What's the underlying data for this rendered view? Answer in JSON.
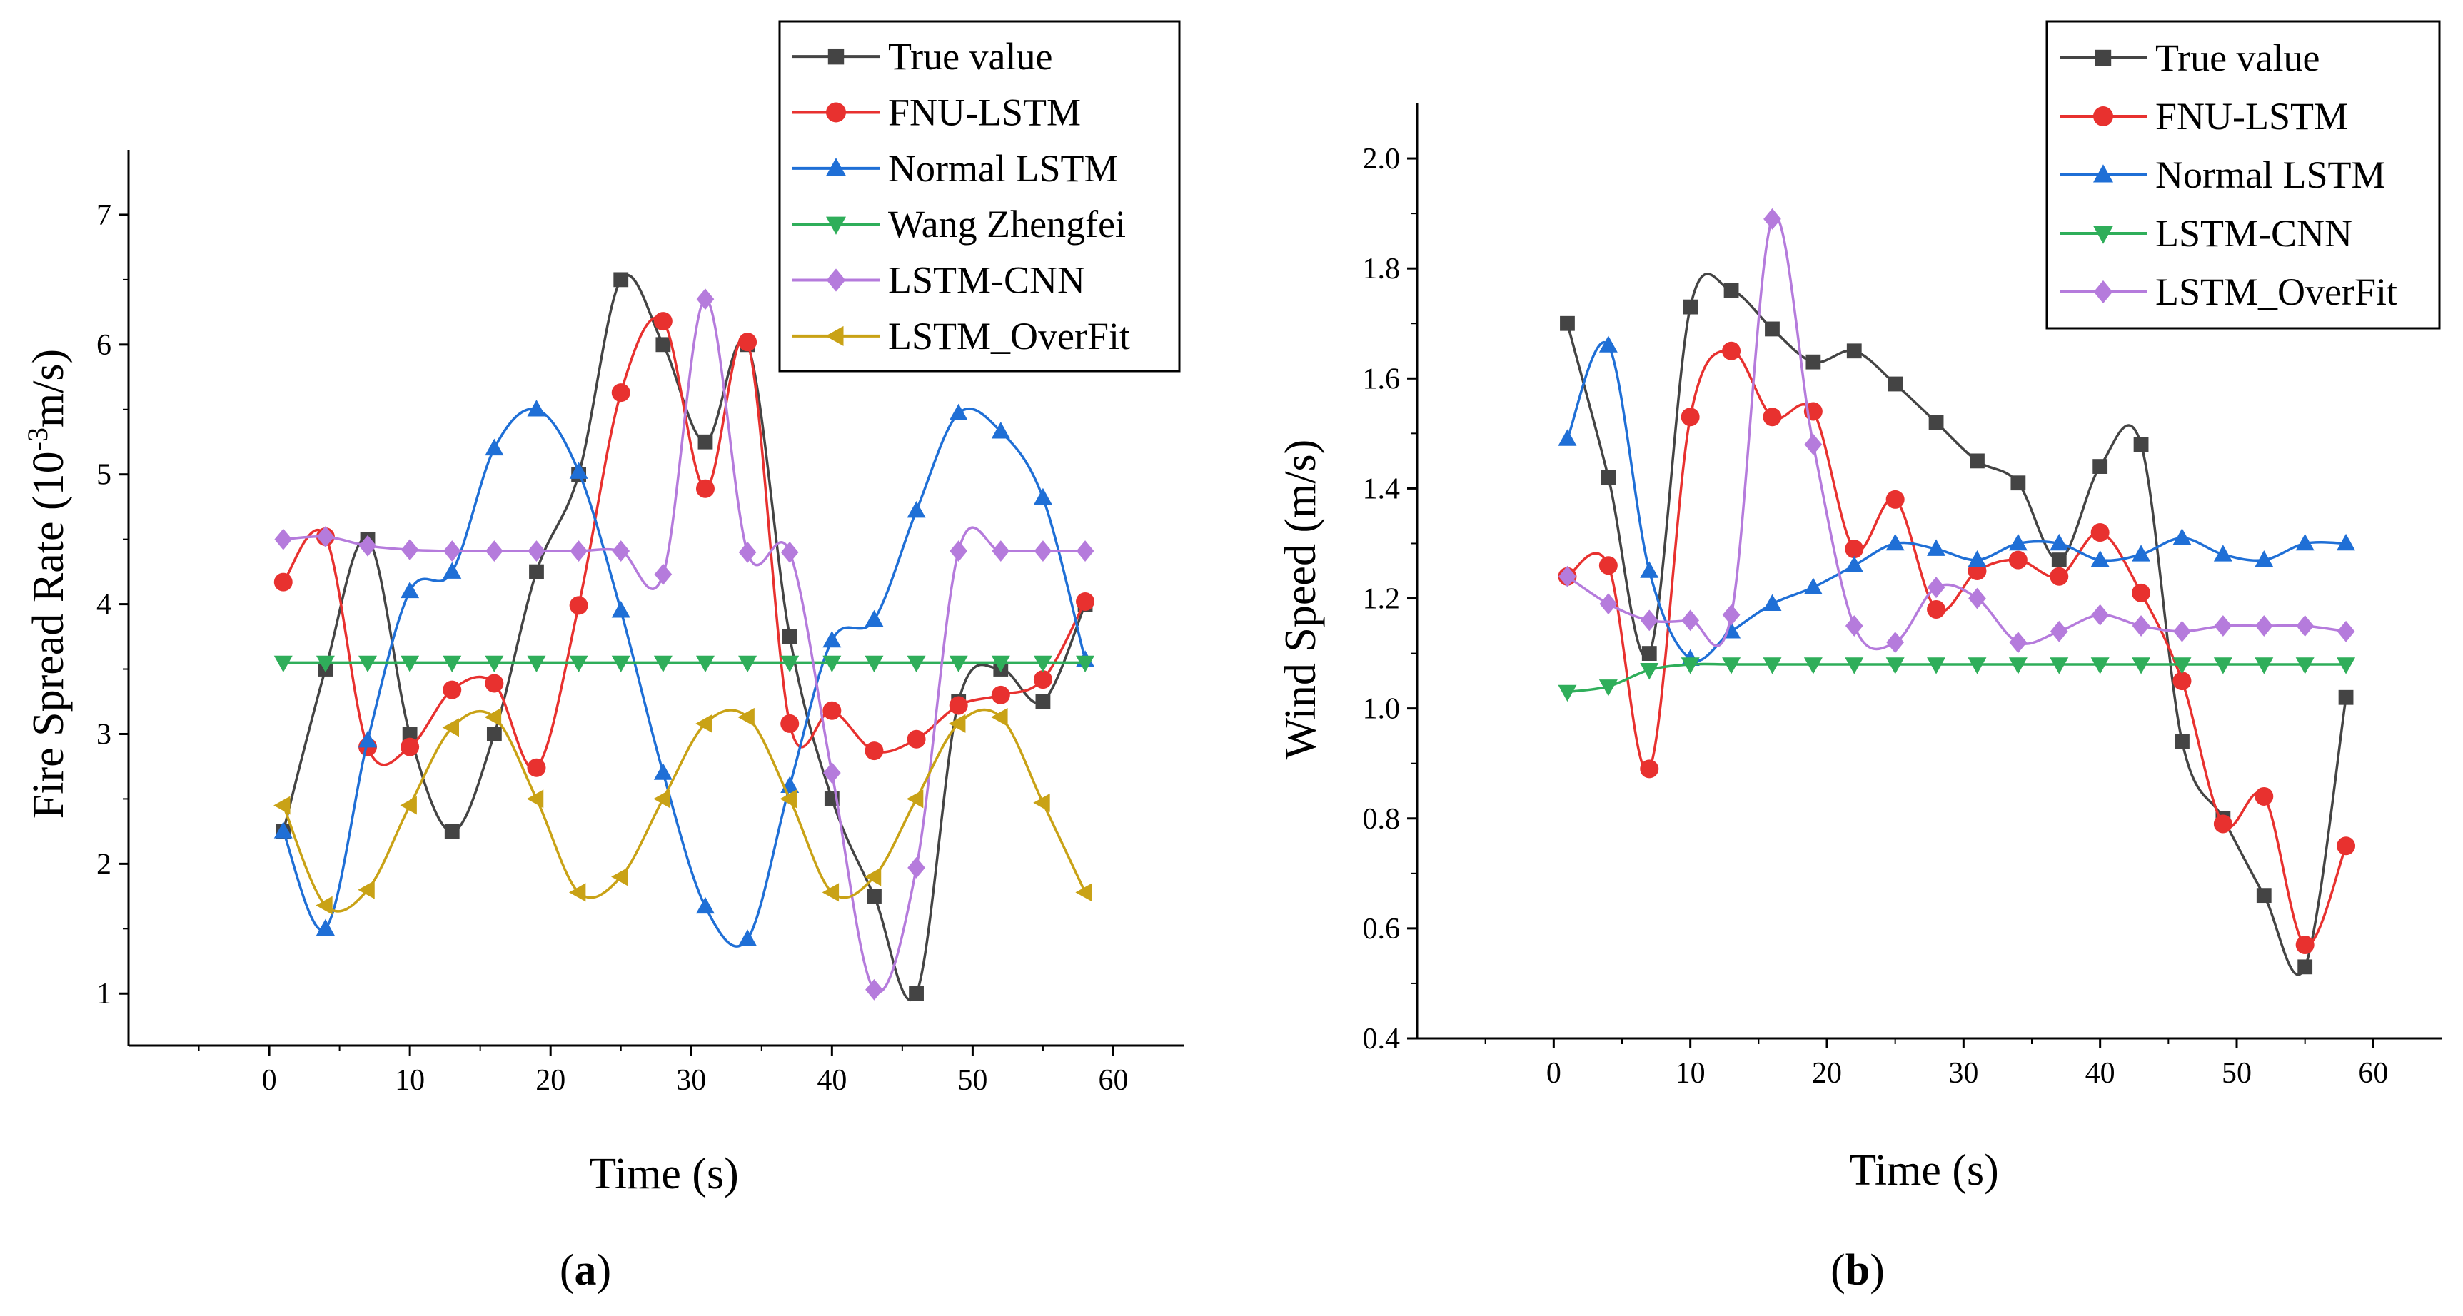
{
  "chart_data": [
    {
      "type": "line",
      "panel_label": "a",
      "title": "",
      "xlabel": "Time (s)",
      "ylabel": "Fire Spread Rate (10⁻³m/s)",
      "xlim": [
        -10,
        65
      ],
      "ylim": [
        0.6,
        7.5
      ],
      "xticks": [
        0,
        10,
        20,
        30,
        40,
        50,
        60
      ],
      "yticks": [
        1,
        2,
        3,
        4,
        5,
        6,
        7
      ],
      "legend_position": "top-right",
      "series": [
        {
          "name": "True value",
          "color": "#444444",
          "marker": "square",
          "x": [
            1,
            4,
            7,
            10,
            13,
            16,
            19,
            22,
            25,
            28,
            31,
            34,
            37,
            40,
            43,
            46,
            49,
            52,
            55,
            58
          ],
          "values": [
            2.25,
            3.5,
            4.5,
            3.0,
            2.25,
            3.0,
            4.25,
            5.0,
            6.5,
            6.0,
            5.25,
            6.0,
            3.75,
            2.5,
            1.75,
            1.0,
            3.25,
            3.5,
            3.25,
            4.0
          ]
        },
        {
          "name": "FNU-LSTM",
          "color": "#e8312f",
          "marker": "circle",
          "x": [
            1,
            4,
            7,
            10,
            13,
            16,
            19,
            22,
            25,
            28,
            31,
            34,
            37,
            40,
            43,
            46,
            49,
            52,
            55,
            58
          ],
          "values": [
            4.17,
            4.52,
            2.9,
            2.9,
            3.34,
            3.39,
            2.74,
            3.99,
            5.63,
            6.18,
            4.89,
            6.02,
            3.08,
            3.18,
            2.87,
            2.96,
            3.22,
            3.3,
            3.42,
            4.02
          ]
        },
        {
          "name": "Normal LSTM",
          "color": "#1f6fd6",
          "marker": "triangle-up",
          "x": [
            1,
            4,
            7,
            10,
            13,
            16,
            19,
            22,
            25,
            28,
            31,
            34,
            37,
            40,
            43,
            46,
            49,
            52,
            55,
            58
          ],
          "values": [
            2.25,
            1.5,
            2.95,
            4.1,
            4.25,
            5.2,
            5.5,
            5.02,
            3.95,
            2.7,
            1.67,
            1.42,
            2.6,
            3.72,
            3.88,
            4.72,
            5.47,
            5.33,
            4.82,
            3.57
          ]
        },
        {
          "name": "Wang Zhengfei",
          "color": "#2fae5a",
          "marker": "triangle-down",
          "x": [
            1,
            4,
            7,
            10,
            13,
            16,
            19,
            22,
            25,
            28,
            31,
            34,
            37,
            40,
            43,
            46,
            49,
            52,
            55,
            58
          ],
          "values": [
            3.55,
            3.55,
            3.55,
            3.55,
            3.55,
            3.55,
            3.55,
            3.55,
            3.55,
            3.55,
            3.55,
            3.55,
            3.55,
            3.55,
            3.55,
            3.55,
            3.55,
            3.55,
            3.55,
            3.55
          ]
        },
        {
          "name": "LSTM-CNN",
          "color": "#b57bdc",
          "marker": "diamond",
          "x": [
            1,
            4,
            7,
            10,
            13,
            16,
            19,
            22,
            25,
            28,
            31,
            34,
            37,
            40,
            43,
            46,
            49,
            52,
            55,
            58
          ],
          "values": [
            4.5,
            4.52,
            4.45,
            4.42,
            4.41,
            4.41,
            4.41,
            4.41,
            4.41,
            4.23,
            6.35,
            4.4,
            4.4,
            2.7,
            1.03,
            1.97,
            4.41,
            4.41,
            4.41,
            4.41
          ]
        },
        {
          "name": "LSTM_OverFit",
          "color": "#c9a216",
          "marker": "triangle-left",
          "x": [
            1,
            4,
            7,
            10,
            13,
            16,
            19,
            22,
            25,
            28,
            31,
            34,
            37,
            40,
            43,
            46,
            49,
            52,
            55,
            58
          ],
          "values": [
            2.45,
            1.68,
            1.8,
            2.45,
            3.05,
            3.13,
            2.5,
            1.78,
            1.9,
            2.5,
            3.08,
            3.13,
            2.5,
            1.78,
            1.9,
            2.5,
            3.08,
            3.13,
            2.47,
            1.78
          ]
        }
      ]
    },
    {
      "type": "line",
      "panel_label": "b",
      "title": "",
      "xlabel": "Time (s)",
      "ylabel": "Wind Speed (m/s)",
      "xlim": [
        -10,
        65
      ],
      "ylim": [
        0.4,
        2.1
      ],
      "xticks": [
        0,
        10,
        20,
        30,
        40,
        50,
        60
      ],
      "yticks": [
        0.4,
        0.6,
        0.8,
        1.0,
        1.2,
        1.4,
        1.6,
        1.8,
        2.0
      ],
      "ytick_labels": [
        "0.4",
        "0.6",
        "0.8",
        "1.0",
        "1.2",
        "1.4",
        "1.6",
        "1.8",
        "2.0"
      ],
      "legend_position": "top-right",
      "series": [
        {
          "name": "True value",
          "color": "#444444",
          "marker": "square",
          "x": [
            1,
            4,
            7,
            10,
            13,
            16,
            19,
            22,
            25,
            28,
            31,
            34,
            37,
            40,
            43,
            46,
            49,
            52,
            55,
            58
          ],
          "values": [
            1.7,
            1.42,
            1.1,
            1.73,
            1.76,
            1.69,
            1.63,
            1.65,
            1.59,
            1.52,
            1.45,
            1.41,
            1.27,
            1.44,
            1.48,
            0.94,
            0.8,
            0.66,
            0.53,
            1.02
          ]
        },
        {
          "name": "FNU-LSTM",
          "color": "#e8312f",
          "marker": "circle",
          "x": [
            1,
            4,
            7,
            10,
            13,
            16,
            19,
            22,
            25,
            28,
            31,
            34,
            37,
            40,
            43,
            46,
            49,
            52,
            55,
            58
          ],
          "values": [
            1.24,
            1.26,
            0.89,
            1.53,
            1.65,
            1.53,
            1.54,
            1.29,
            1.38,
            1.18,
            1.25,
            1.27,
            1.24,
            1.32,
            1.21,
            1.05,
            0.79,
            0.84,
            0.57,
            0.75
          ]
        },
        {
          "name": "Normal LSTM",
          "color": "#1f6fd6",
          "marker": "triangle-up",
          "x": [
            1,
            4,
            7,
            10,
            13,
            16,
            19,
            22,
            25,
            28,
            31,
            34,
            37,
            40,
            43,
            46,
            49,
            52,
            55,
            58
          ],
          "values": [
            1.49,
            1.66,
            1.25,
            1.09,
            1.14,
            1.19,
            1.22,
            1.26,
            1.3,
            1.29,
            1.27,
            1.3,
            1.3,
            1.27,
            1.28,
            1.31,
            1.28,
            1.27,
            1.3,
            1.3
          ]
        },
        {
          "name": "LSTM-CNN",
          "color": "#2fae5a",
          "marker": "triangle-down",
          "x": [
            1,
            4,
            7,
            10,
            13,
            16,
            19,
            22,
            25,
            28,
            31,
            34,
            37,
            40,
            43,
            46,
            49,
            52,
            55,
            58
          ],
          "values": [
            1.03,
            1.04,
            1.07,
            1.08,
            1.08,
            1.08,
            1.08,
            1.08,
            1.08,
            1.08,
            1.08,
            1.08,
            1.08,
            1.08,
            1.08,
            1.08,
            1.08,
            1.08,
            1.08,
            1.08
          ]
        },
        {
          "name": "LSTM_OverFit",
          "color": "#b57bdc",
          "marker": "diamond",
          "x": [
            1,
            4,
            7,
            10,
            13,
            16,
            19,
            22,
            25,
            28,
            31,
            34,
            37,
            40,
            43,
            46,
            49,
            52,
            55,
            58
          ],
          "values": [
            1.24,
            1.19,
            1.16,
            1.16,
            1.17,
            1.89,
            1.48,
            1.15,
            1.12,
            1.22,
            1.2,
            1.12,
            1.14,
            1.17,
            1.15,
            1.14,
            1.15,
            1.15,
            1.15,
            1.14
          ]
        }
      ]
    }
  ]
}
